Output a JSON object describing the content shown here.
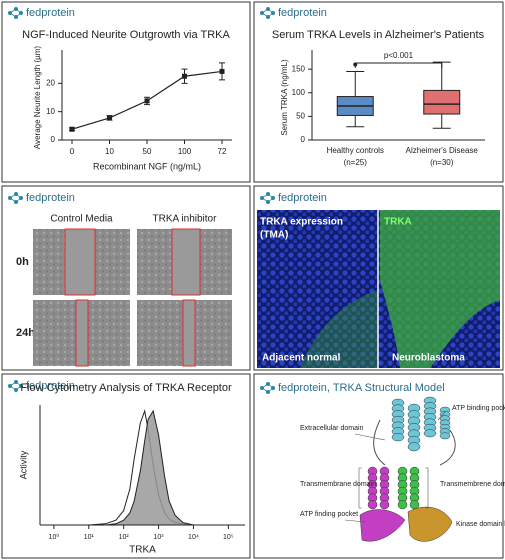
{
  "panels": {
    "logo": "fedprotein",
    "wound": {
      "columns": [
        "Control Media",
        "TRKA inhibitor"
      ],
      "rows": [
        "0h",
        "24h"
      ]
    },
    "ihc": {
      "left_title": [
        "TRKA expression",
        "(TMA)"
      ],
      "right_title": "TRKA",
      "left_caption": "Adjacent normal",
      "right_caption": "Neuroblastoma"
    },
    "structure": {
      "title": "fedprotein, TRKA Structural Model",
      "labels": [
        "ATP binding pocket",
        "Extracellular domain",
        "Transmembrane domain",
        "Transmembrene domain",
        "ATP finding pocket",
        "Kinase domain kinase"
      ]
    }
  },
  "chart_data": [
    {
      "type": "line",
      "title": "NGF-Induced Neurite Outgrowth via TRKA",
      "x_label": "Recombinant NGF (ng/mL)",
      "y_label": "Average Neurite Length (µm)",
      "categories": [
        "0",
        "10",
        "50",
        "100",
        "72"
      ],
      "values": [
        3.8,
        7.8,
        13.8,
        22.5,
        24.2
      ],
      "errors": [
        0.5,
        0.8,
        1.3,
        2.5,
        3.0
      ],
      "ylim": [
        0,
        30
      ],
      "yticks": [
        0,
        10,
        20
      ],
      "color": "#222222"
    },
    {
      "type": "box",
      "title": "Serum TRKA Levels in Alzheimer's Patients",
      "y_label": "Serum TRKA (ng/mL)",
      "categories": [
        "Healthy controls",
        "Alzheimer's Disease"
      ],
      "sample_sizes": [
        "(n=25)",
        "(n=30)"
      ],
      "annotation": "p<0.001",
      "boxes": [
        {
          "min": 28,
          "q1": 52,
          "median": 72,
          "q3": 92,
          "max": 145,
          "outliers": [
            160
          ],
          "color": "#5b8ac4"
        },
        {
          "min": 25,
          "q1": 55,
          "median": 76,
          "q3": 105,
          "max": 165,
          "color": "#e07070"
        }
      ],
      "ylim": [
        0,
        180
      ],
      "yticks": [
        0,
        50,
        100,
        150
      ]
    },
    {
      "type": "area",
      "title": "Flow Cytometry Analysis of TRKA Receptor",
      "x_label": "TRKA",
      "y_label": "Activity",
      "log_x": true,
      "x": [
        10,
        30,
        60,
        100,
        150,
        200,
        300,
        400,
        500,
        700,
        1000,
        1500,
        2000,
        3000,
        5000,
        10000
      ],
      "series": [
        {
          "color": "#ffffff",
          "values": [
            0,
            1,
            4,
            12,
            30,
            55,
            85,
            95,
            80,
            50,
            25,
            10,
            5,
            2,
            1,
            0
          ]
        },
        {
          "color": "#999999",
          "values": [
            0,
            0,
            1,
            4,
            10,
            20,
            45,
            70,
            88,
            95,
            75,
            40,
            20,
            8,
            2,
            0
          ]
        }
      ],
      "xlim": [
        0.4,
        300000
      ],
      "xticks": [
        {
          "value": 1,
          "label": "10⁰"
        },
        {
          "value": 10,
          "label": "10¹"
        },
        {
          "value": 100,
          "label": "10²"
        },
        {
          "value": 1000,
          "label": "10³"
        },
        {
          "value": 10000,
          "label": "10⁴"
        },
        {
          "value": 100000,
          "label": "10⁵"
        }
      ],
      "ylim": [
        0,
        100
      ]
    }
  ]
}
